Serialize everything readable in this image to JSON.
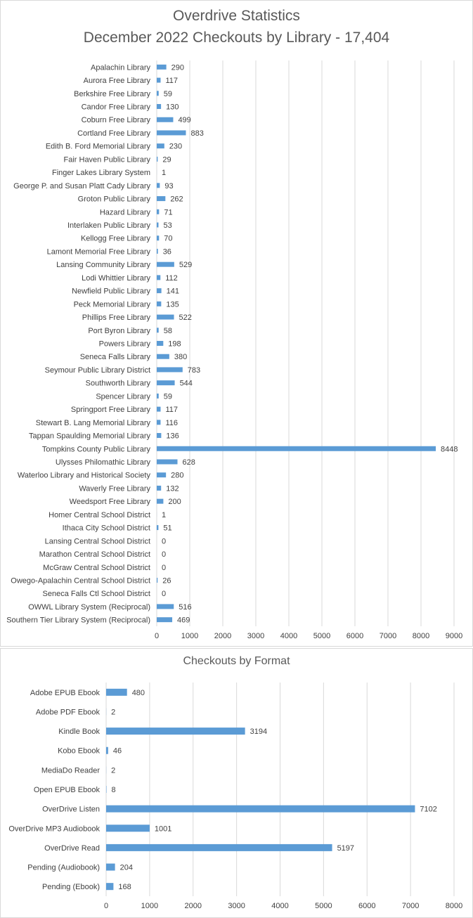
{
  "colors": {
    "bar": "#5b9bd5",
    "grid": "#d9d9d9",
    "text": "#404040",
    "title": "#595959"
  },
  "chart_data": [
    {
      "type": "bar",
      "orientation": "horizontal",
      "title": "Overdrive Statistics",
      "subtitle": "December 2022 Checkouts by Library - 17,404",
      "grid": true,
      "xlim": [
        0,
        9000
      ],
      "xticks": [
        0,
        1000,
        2000,
        3000,
        4000,
        5000,
        6000,
        7000,
        8000,
        9000
      ],
      "categories": [
        "Apalachin Library",
        "Aurora Free Library",
        "Berkshire Free Library",
        "Candor Free Library",
        "Coburn Free Library",
        "Cortland Free Library",
        "Edith B. Ford Memorial Library",
        "Fair Haven Public Library",
        "Finger Lakes Library System",
        "George P. and Susan Platt Cady Library",
        "Groton Public Library",
        "Hazard Library",
        "Interlaken Public Library",
        "Kellogg Free Library",
        "Lamont Memorial Free Library",
        "Lansing Community Library",
        "Lodi Whittier Library",
        "Newfield Public Library",
        "Peck Memorial Library",
        "Phillips Free Library",
        "Port Byron Library",
        "Powers Library",
        "Seneca Falls Library",
        "Seymour Public Library District",
        "Southworth Library",
        "Spencer Library",
        "Springport Free Library",
        "Stewart B. Lang Memorial Library",
        "Tappan Spaulding Memorial Library",
        "Tompkins County Public Library",
        "Ulysses Philomathic Library",
        "Waterloo Library and Historical Society",
        "Waverly Free Library",
        "Weedsport Free Library",
        "Homer Central School District",
        "Ithaca City School District",
        "Lansing Central School District",
        "Marathon Central School District",
        "McGraw Central School District",
        "Owego-Apalachin Central School District",
        "Seneca Falls Ctl School District",
        "OWWL Library System (Reciprocal)",
        "Southern Tier Library System (Reciprocal)"
      ],
      "values": [
        290,
        117,
        59,
        130,
        499,
        883,
        230,
        29,
        1,
        93,
        262,
        71,
        53,
        70,
        36,
        529,
        112,
        141,
        135,
        522,
        58,
        198,
        380,
        783,
        544,
        59,
        117,
        116,
        136,
        8448,
        628,
        280,
        132,
        200,
        1,
        51,
        0,
        0,
        0,
        26,
        0,
        516,
        469
      ]
    },
    {
      "type": "bar",
      "orientation": "horizontal",
      "title": "Checkouts by Format",
      "grid": true,
      "xlim": [
        0,
        8000
      ],
      "xticks": [
        0,
        1000,
        2000,
        3000,
        4000,
        5000,
        6000,
        7000,
        8000
      ],
      "categories": [
        "Adobe EPUB Ebook",
        "Adobe PDF Ebook",
        "Kindle Book",
        "Kobo Ebook",
        "MediaDo Reader",
        "Open EPUB Ebook",
        "OverDrive Listen",
        "OverDrive MP3 Audiobook",
        "OverDrive Read",
        "Pending (Audiobook)",
        "Pending (Ebook)"
      ],
      "values": [
        480,
        2,
        3194,
        46,
        2,
        8,
        7102,
        1001,
        5197,
        204,
        168
      ]
    }
  ]
}
